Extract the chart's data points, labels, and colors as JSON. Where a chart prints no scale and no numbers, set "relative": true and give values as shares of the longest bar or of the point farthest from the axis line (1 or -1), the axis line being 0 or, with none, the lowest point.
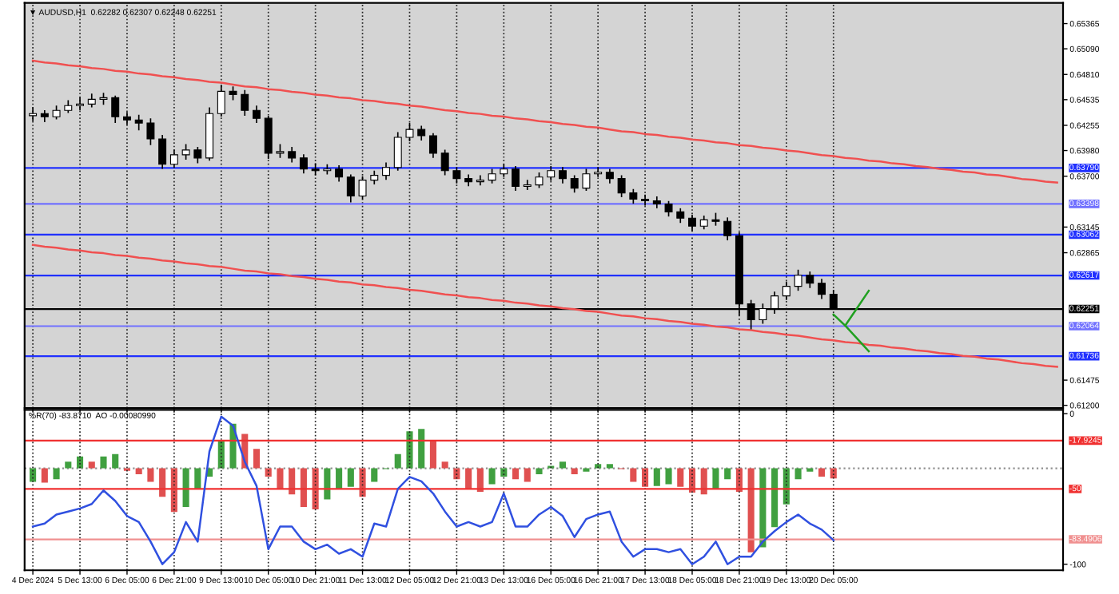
{
  "chart_data": [
    {
      "type": "candlestick",
      "color": "#000000",
      "annotations": [
        "▼ AUDUSD,H1  0.62282 0.62307 0.62248 0.62251"
      ],
      "ohlc": [
        [
          0.6436,
          0.6445,
          0.643,
          0.64383
        ],
        [
          0.64383,
          0.6442,
          0.6429,
          0.64349
        ],
        [
          0.64349,
          0.6447,
          0.6432,
          0.64418
        ],
        [
          0.64418,
          0.6453,
          0.6439,
          0.6447
        ],
        [
          0.6447,
          0.6456,
          0.6442,
          0.64487
        ],
        [
          0.64487,
          0.646,
          0.6445,
          0.64539
        ],
        [
          0.64539,
          0.6461,
          0.6448,
          0.64556
        ],
        [
          0.64556,
          0.6458,
          0.6428,
          0.64349
        ],
        [
          0.64349,
          0.644,
          0.6426,
          0.64314
        ],
        [
          0.64314,
          0.6437,
          0.642,
          0.6428
        ],
        [
          0.6428,
          0.6433,
          0.6404,
          0.64107
        ],
        [
          0.64107,
          0.6415,
          0.6378,
          0.6383
        ],
        [
          0.6383,
          0.6399,
          0.6379,
          0.63934
        ],
        [
          0.63934,
          0.6405,
          0.6388,
          0.63986
        ],
        [
          0.63986,
          0.6402,
          0.6384,
          0.63899
        ],
        [
          0.63899,
          0.6445,
          0.6387,
          0.64383
        ],
        [
          0.64383,
          0.647,
          0.6435,
          0.64626
        ],
        [
          0.64626,
          0.6468,
          0.6453,
          0.64591
        ],
        [
          0.64591,
          0.6464,
          0.6436,
          0.64418
        ],
        [
          0.64418,
          0.6447,
          0.6428,
          0.64332
        ],
        [
          0.64332,
          0.6436,
          0.6389,
          0.63951
        ],
        [
          0.63951,
          0.6405,
          0.639,
          0.63968
        ],
        [
          0.63968,
          0.6402,
          0.6385,
          0.63899
        ],
        [
          0.63899,
          0.6394,
          0.6373,
          0.63778
        ],
        [
          0.63778,
          0.6384,
          0.6371,
          0.63761
        ],
        [
          0.63761,
          0.6383,
          0.6372,
          0.63778
        ],
        [
          0.63778,
          0.6382,
          0.6364,
          0.63691
        ],
        [
          0.63691,
          0.6372,
          0.63415,
          0.63484
        ],
        [
          0.63484,
          0.637,
          0.6345,
          0.63657
        ],
        [
          0.63657,
          0.6376,
          0.6361,
          0.63709
        ],
        [
          0.63709,
          0.6385,
          0.6366,
          0.63795
        ],
        [
          0.63795,
          0.6418,
          0.6376,
          0.64124
        ],
        [
          0.64124,
          0.6428,
          0.6408,
          0.6421
        ],
        [
          0.6421,
          0.6425,
          0.6409,
          0.64141
        ],
        [
          0.64141,
          0.6417,
          0.639,
          0.63951
        ],
        [
          0.63951,
          0.6399,
          0.6371,
          0.63761
        ],
        [
          0.63761,
          0.638,
          0.6362,
          0.63674
        ],
        [
          0.63674,
          0.6372,
          0.6359,
          0.6364
        ],
        [
          0.6364,
          0.6371,
          0.636,
          0.63657
        ],
        [
          0.63657,
          0.6378,
          0.6362,
          0.63726
        ],
        [
          0.63726,
          0.6383,
          0.6369,
          0.63778
        ],
        [
          0.63778,
          0.6381,
          0.6354,
          0.63588
        ],
        [
          0.63588,
          0.6366,
          0.6355,
          0.63605
        ],
        [
          0.63605,
          0.6374,
          0.6357,
          0.63691
        ],
        [
          0.63691,
          0.6381,
          0.6365,
          0.63761
        ],
        [
          0.63761,
          0.638,
          0.6362,
          0.63674
        ],
        [
          0.63674,
          0.6371,
          0.6352,
          0.6357
        ],
        [
          0.6357,
          0.6378,
          0.6354,
          0.63726
        ],
        [
          0.63726,
          0.638,
          0.6369,
          0.63743
        ],
        [
          0.63743,
          0.6378,
          0.6362,
          0.63674
        ],
        [
          0.63674,
          0.6371,
          0.6347,
          0.63518
        ],
        [
          0.63518,
          0.6356,
          0.634,
          0.63449
        ],
        [
          0.63449,
          0.635,
          0.6338,
          0.63432
        ],
        [
          0.63432,
          0.6348,
          0.6335,
          0.63397
        ],
        [
          0.63397,
          0.6343,
          0.6326,
          0.63311
        ],
        [
          0.63311,
          0.6335,
          0.6319,
          0.63242
        ],
        [
          0.63242,
          0.6328,
          0.631,
          0.63155
        ],
        [
          0.63155,
          0.6327,
          0.6312,
          0.63224
        ],
        [
          0.63224,
          0.633,
          0.6316,
          0.63207
        ],
        [
          0.63207,
          0.6325,
          0.63,
          0.63051
        ],
        [
          0.63051,
          0.6309,
          0.6218,
          0.62307
        ],
        [
          0.62307,
          0.6235,
          0.6203,
          0.62134
        ],
        [
          0.62134,
          0.6231,
          0.6209,
          0.62256
        ],
        [
          0.62256,
          0.6244,
          0.622,
          0.62394
        ],
        [
          0.62394,
          0.6255,
          0.6235,
          0.62498
        ],
        [
          0.62498,
          0.6268,
          0.6245,
          0.62619
        ],
        [
          0.62619,
          0.6266,
          0.6248,
          0.62532
        ],
        [
          0.62532,
          0.6258,
          0.6236,
          0.62411
        ],
        [
          0.62411,
          0.6246,
          0.62248,
          0.62251
        ],
        null,
        null,
        null,
        null,
        null,
        null,
        null,
        null,
        null,
        null,
        null,
        null,
        null,
        null,
        null,
        null,
        null,
        null,
        null
      ],
      "series": [
        {
          "type": "line",
          "color": "#f05050",
          "values": [
            0.6496,
            0.6494,
            0.6493,
            0.6491,
            0.649,
            0.6488,
            0.6487,
            0.6485,
            0.6484,
            0.6482,
            0.6481,
            0.6479,
            0.6478,
            0.6476,
            0.6475,
            0.6473,
            0.6472,
            0.647,
            0.6468,
            0.6467,
            0.6465,
            0.6464,
            0.6462,
            0.6461,
            0.6459,
            0.6458,
            0.6456,
            0.6455,
            0.6453,
            0.6452,
            0.645,
            0.6449,
            0.6447,
            0.6446,
            0.6444,
            0.6442,
            0.6441,
            0.6439,
            0.6438,
            0.6436,
            0.6435,
            0.6433,
            0.6432,
            0.643,
            0.6429,
            0.6427,
            0.6426,
            0.6424,
            0.6423,
            0.6421,
            0.6419,
            0.6418,
            0.6416,
            0.6415,
            0.6413,
            0.6412,
            0.641,
            0.6409,
            0.6407,
            0.6406,
            0.6404,
            0.6403,
            0.6401,
            0.64,
            0.6398,
            0.6397,
            0.6395,
            0.6393,
            0.6392,
            0.639,
            0.6389,
            0.6387,
            0.6386,
            0.6384,
            0.6383,
            0.6381,
            0.638,
            0.6378,
            0.6377,
            0.6375,
            0.6374,
            0.6372,
            0.6371,
            0.6369,
            0.6367,
            0.6366,
            0.6364,
            0.6363
          ]
        },
        {
          "type": "line",
          "color": "#f05050",
          "values": [
            0.6295,
            0.6293,
            0.6292,
            0.629,
            0.6289,
            0.6287,
            0.6286,
            0.6284,
            0.6283,
            0.6281,
            0.628,
            0.6278,
            0.6277,
            0.6275,
            0.6274,
            0.6272,
            0.6271,
            0.6269,
            0.6267,
            0.6266,
            0.6264,
            0.6263,
            0.6261,
            0.626,
            0.6258,
            0.6257,
            0.6255,
            0.6254,
            0.6252,
            0.6251,
            0.6249,
            0.6248,
            0.6246,
            0.6245,
            0.6243,
            0.6241,
            0.624,
            0.6238,
            0.6237,
            0.6235,
            0.6234,
            0.6232,
            0.6231,
            0.6229,
            0.6228,
            0.6226,
            0.6225,
            0.6223,
            0.6222,
            0.622,
            0.6218,
            0.6217,
            0.6215,
            0.6214,
            0.6212,
            0.6211,
            0.6209,
            0.6208,
            0.6206,
            0.6205,
            0.6203,
            0.6202,
            0.62,
            0.6199,
            0.6197,
            0.6196,
            0.6194,
            0.6192,
            0.6191,
            0.6189,
            0.6188,
            0.6186,
            0.6185,
            0.6183,
            0.6182,
            0.618,
            0.6179,
            0.6177,
            0.6176,
            0.6174,
            0.6173,
            0.6171,
            0.617,
            0.6168,
            0.6166,
            0.6165,
            0.6163,
            0.6162
          ]
        },
        {
          "type": "line",
          "color": "#20a020",
          "values": [
            null,
            null,
            null,
            null,
            null,
            null,
            null,
            null,
            null,
            null,
            null,
            null,
            null,
            null,
            null,
            null,
            null,
            null,
            null,
            null,
            null,
            null,
            null,
            null,
            null,
            null,
            null,
            null,
            null,
            null,
            null,
            null,
            null,
            null,
            null,
            null,
            null,
            null,
            null,
            null,
            null,
            null,
            null,
            null,
            null,
            null,
            null,
            null,
            null,
            null,
            null,
            null,
            null,
            null,
            null,
            null,
            null,
            null,
            null,
            null,
            null,
            null,
            null,
            null,
            null,
            null,
            null,
            null,
            0.6219,
            0.6207,
            0.6226,
            0.6245,
            null,
            null,
            null,
            null,
            null,
            null,
            null,
            null,
            null,
            null,
            null,
            null,
            null,
            null,
            null,
            null
          ]
        },
        {
          "type": "line",
          "color": "#20a020",
          "values": [
            null,
            null,
            null,
            null,
            null,
            null,
            null,
            null,
            null,
            null,
            null,
            null,
            null,
            null,
            null,
            null,
            null,
            null,
            null,
            null,
            null,
            null,
            null,
            null,
            null,
            null,
            null,
            null,
            null,
            null,
            null,
            null,
            null,
            null,
            null,
            null,
            null,
            null,
            null,
            null,
            null,
            null,
            null,
            null,
            null,
            null,
            null,
            null,
            null,
            null,
            null,
            null,
            null,
            null,
            null,
            null,
            null,
            null,
            null,
            null,
            null,
            null,
            null,
            null,
            null,
            null,
            null,
            null,
            null,
            0.6207,
            0.6193,
            0.6179,
            null,
            null,
            null,
            null,
            null,
            null,
            null,
            null,
            null,
            null,
            null,
            null,
            null,
            null,
            null,
            null
          ]
        }
      ],
      "ref_lines": [
        {
          "axis": "y",
          "value": 0.6379,
          "label": "0.63790",
          "color": "#2030ff"
        },
        {
          "axis": "y",
          "value": 0.63398,
          "label": "0.63398",
          "color": "#7070ff"
        },
        {
          "axis": "y",
          "value": 0.63062,
          "label": "0.63062",
          "color": "#2030ff"
        },
        {
          "axis": "y",
          "value": 0.62617,
          "label": "0.62617",
          "color": "#2030ff"
        },
        {
          "axis": "y",
          "value": 0.62251,
          "label": "0.62251",
          "color": "#000000"
        },
        {
          "axis": "y",
          "value": 0.62064,
          "label": "0.62064",
          "color": "#7070ff"
        },
        {
          "axis": "y",
          "value": 0.61736,
          "label": "0.61736",
          "color": "#2030ff"
        }
      ],
      "ylim": [
        0.6117,
        0.6559
      ],
      "yticks": [
        {
          "value": 0.65365,
          "label": "0.65365"
        },
        {
          "value": 0.6509,
          "label": "0.65090"
        },
        {
          "value": 0.6481,
          "label": "0.64810"
        },
        {
          "value": 0.64535,
          "label": "0.64535"
        },
        {
          "value": 0.64255,
          "label": "0.64255"
        },
        {
          "value": 0.6398,
          "label": "0.63980"
        },
        {
          "value": 0.637,
          "label": "0.63700"
        },
        {
          "value": 0.63145,
          "label": "0.63145"
        },
        {
          "value": 0.62865,
          "label": "0.62865"
        },
        {
          "value": 0.61475,
          "label": "0.61475"
        },
        {
          "value": 0.612,
          "label": "0.61200"
        }
      ],
      "tick_labels": "y",
      "grid": "x"
    },
    {
      "type": "line",
      "annotations": [
        "%R(70) -83.8710  AO -0.00080990"
      ],
      "categories": [
        "4 Dec 2024",
        null,
        null,
        null,
        "5 Dec 13:00",
        null,
        null,
        null,
        "6 Dec 05:00",
        null,
        null,
        null,
        "6 Dec 21:00",
        null,
        null,
        null,
        "9 Dec 13:00",
        null,
        null,
        null,
        "10 Dec 05:00",
        null,
        null,
        null,
        "10 Dec 21:00",
        null,
        null,
        null,
        "11 Dec 13:00",
        null,
        null,
        null,
        "12 Dec 05:00",
        null,
        null,
        null,
        "12 Dec 21:00",
        null,
        null,
        null,
        "13 Dec 13:00",
        null,
        null,
        null,
        "16 Dec 05:00",
        null,
        null,
        null,
        "16 Dec 21:00",
        null,
        null,
        null,
        "17 Dec 13:00",
        null,
        null,
        null,
        "18 Dec 05:00",
        null,
        null,
        null,
        "18 Dec 21:00",
        null,
        null,
        null,
        "19 Dec 13:00",
        null,
        null,
        null,
        "20 Dec 05:00",
        null,
        null,
        null,
        null,
        null,
        null,
        null,
        null,
        null,
        null,
        null,
        null,
        null,
        null,
        null,
        null,
        null,
        null,
        null
      ],
      "series": [
        {
          "color": "#3050e0",
          "values": [
            -75,
            -73,
            -67,
            -65,
            -63,
            -60,
            -51,
            -58,
            -68,
            -72,
            -85,
            -100,
            -92,
            -72,
            -85,
            -25,
            -2,
            -8,
            -32,
            -48,
            -90,
            -75,
            -75,
            -85,
            -90,
            -87,
            -93,
            -90,
            -95,
            -73,
            -75,
            -50,
            -42,
            -45,
            -53,
            -65,
            -75,
            -72,
            -75,
            -72,
            -53,
            -75,
            -75,
            -67,
            -62,
            -68,
            -82,
            -70,
            -67,
            -65,
            -85,
            -95,
            -90,
            -90,
            -92,
            -90,
            -100,
            -95,
            -85,
            -100,
            -95,
            -95,
            -85,
            -78,
            -72,
            -67,
            -73,
            -77,
            -84,
            null,
            null,
            null,
            null,
            null,
            null,
            null,
            null,
            null,
            null,
            null,
            null,
            null,
            null,
            null,
            null,
            null,
            null,
            null
          ]
        }
      ],
      "ref_lines": [
        {
          "axis": "y",
          "value": -17.9245,
          "label": "-17.9245",
          "color": "#f03030"
        },
        {
          "axis": "y",
          "value": -50,
          "label": "-50",
          "color": "#f03030"
        },
        {
          "axis": "y",
          "value": -83.4906,
          "label": "-83.4906",
          "color": "#f09090"
        }
      ],
      "ylim": [
        -104,
        2.5
      ],
      "yticks": [
        0,
        -100
      ],
      "grid": "x"
    },
    {
      "type": "bar",
      "relative": true,
      "tick_labels": false,
      "values": [
        -0.16,
        -0.17,
        -0.13,
        0.08,
        0.14,
        0.08,
        0.14,
        0.17,
        -0.03,
        -0.07,
        -0.16,
        -0.34,
        -0.52,
        -0.46,
        -0.25,
        -0.1,
        0.32,
        0.53,
        0.41,
        0.23,
        -0.1,
        -0.25,
        -0.31,
        -0.46,
        -0.49,
        -0.37,
        -0.25,
        -0.22,
        -0.34,
        -0.16,
        -0.01,
        0.17,
        0.44,
        0.47,
        0.32,
        0.08,
        -0.13,
        -0.25,
        -0.28,
        -0.19,
        -0.1,
        -0.13,
        -0.16,
        -0.07,
        0.03,
        0.08,
        -0.07,
        -0.04,
        0.05,
        0.05,
        -0.01,
        -0.16,
        -0.22,
        -0.21,
        -0.19,
        -0.22,
        -0.29,
        -0.31,
        -0.25,
        -0.13,
        -0.28,
        -1,
        -0.94,
        -0.7,
        -0.43,
        -0.13,
        -0.04,
        -0.1,
        -0.12,
        null,
        null,
        null,
        null,
        null,
        null,
        null,
        null,
        null,
        null,
        null,
        null,
        null,
        null,
        null,
        null,
        null,
        null,
        null
      ],
      "colors": [
        "#40a040",
        "#e05050",
        "#40a040",
        "#40a040",
        "#40a040",
        "#e05050",
        "#40a040",
        "#40a040",
        "#e05050",
        "#e05050",
        "#e05050",
        "#e05050",
        "#e05050",
        "#40a040",
        "#40a040",
        "#40a040",
        "#40a040",
        "#40a040",
        "#e05050",
        "#e05050",
        "#e05050",
        "#e05050",
        "#e05050",
        "#e05050",
        "#e05050",
        "#40a040",
        "#40a040",
        "#40a040",
        "#e05050",
        "#40a040",
        "#40a040",
        "#40a040",
        "#40a040",
        "#40a040",
        "#e05050",
        "#e05050",
        "#e05050",
        "#e05050",
        "#e05050",
        "#40a040",
        "#40a040",
        "#e05050",
        "#e05050",
        "#40a040",
        "#40a040",
        "#40a040",
        "#e05050",
        "#40a040",
        "#40a040",
        "#40a040",
        "#e05050",
        "#e05050",
        "#e05050",
        "#40a040",
        "#40a040",
        "#e05050",
        "#e05050",
        "#e05050",
        "#40a040",
        "#40a040",
        "#e05050",
        "#e05050",
        "#40a040",
        "#40a040",
        "#40a040",
        "#40a040",
        "#40a040",
        "#e05050",
        "#e05050",
        null,
        null,
        null,
        null,
        null,
        null,
        null,
        null,
        null,
        null,
        null,
        null,
        null,
        null,
        null,
        null,
        null,
        null,
        null
      ],
      "ref_lines": [
        {
          "axis": "y",
          "value": 0,
          "color": "#909090",
          "line_style": "dotted"
        }
      ]
    }
  ]
}
